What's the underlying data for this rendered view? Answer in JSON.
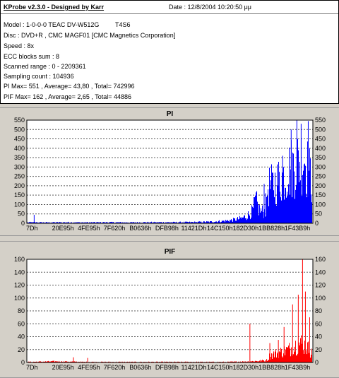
{
  "header": {
    "title": "KProbe v2.3.0 - Designed by Karr",
    "date": "Date : 12/8/2004 10:20:50 μμ",
    "lines": [
      "Model : 1-0-0-0 TEAC    DV-W512G",
      "Disc : DVD+R , CMC MAGF01 [CMC Magnetics Corporation]",
      "Speed : 8x",
      "ECC blocks sum : 8",
      "Scanned range : 0 - 2209361",
      "Sampling count : 104936",
      "PI Max= 551 , Average= 43,80 , Total= 742996",
      "PIF Max= 162 , Average= 2,65 , Total= 44886"
    ],
    "firmware": "T4S6"
  },
  "charts": [
    {
      "chart_data": {
        "type": "area",
        "title": "PI",
        "color": "#0000ff",
        "ylim": [
          0,
          550
        ],
        "yticks": [
          0,
          50,
          100,
          150,
          200,
          250,
          300,
          350,
          400,
          450,
          500,
          550
        ],
        "xticks": [
          "7Dh",
          "20E95h",
          "4FE95h",
          "7F620h",
          "B0636h",
          "DFB98h",
          "11421Dh",
          "14C150h",
          "182D30h",
          "1BB828h",
          "1F43B9h"
        ],
        "xlim": [
          0,
          2209361
        ],
        "max": 551,
        "average": 43.8,
        "profile": [
          [
            0,
            6
          ],
          [
            0.07,
            5
          ],
          [
            0.14,
            6
          ],
          [
            0.21,
            5
          ],
          [
            0.28,
            6
          ],
          [
            0.35,
            5
          ],
          [
            0.42,
            6
          ],
          [
            0.5,
            6
          ],
          [
            0.58,
            7
          ],
          [
            0.64,
            9
          ],
          [
            0.69,
            14
          ],
          [
            0.72,
            20
          ],
          [
            0.75,
            30
          ],
          [
            0.77,
            45
          ],
          [
            0.78,
            60
          ],
          [
            0.79,
            75
          ],
          [
            0.8,
            140
          ],
          [
            0.805,
            120
          ],
          [
            0.81,
            90
          ],
          [
            0.815,
            80
          ],
          [
            0.82,
            75
          ],
          [
            0.83,
            70
          ],
          [
            0.838,
            75
          ],
          [
            0.842,
            220
          ],
          [
            0.86,
            230
          ],
          [
            0.88,
            260
          ],
          [
            0.9,
            290
          ],
          [
            0.92,
            330
          ],
          [
            0.94,
            360
          ],
          [
            0.96,
            390
          ],
          [
            0.97,
            420
          ],
          [
            0.98,
            350
          ],
          [
            0.99,
            300
          ],
          [
            1,
            260
          ]
        ],
        "spikes": [
          [
            0.022,
            45
          ],
          [
            0.83,
            210
          ],
          [
            0.835,
            160
          ],
          [
            0.895,
            360
          ],
          [
            0.925,
            500
          ],
          [
            0.945,
            551
          ],
          [
            0.96,
            530
          ],
          [
            0.985,
            545
          ]
        ]
      }
    },
    {
      "chart_data": {
        "type": "area",
        "title": "PIF",
        "color": "#ff0000",
        "ylim": [
          0,
          160
        ],
        "yticks": [
          0,
          20,
          40,
          60,
          80,
          100,
          120,
          140,
          160
        ],
        "xticks": [
          "7Dh",
          "20E95h",
          "4FE95h",
          "7F620h",
          "B0636h",
          "DFB98h",
          "11421Dh",
          "14C150h",
          "182D30h",
          "1BB828h",
          "1F43B9h"
        ],
        "xlim": [
          0,
          2209361
        ],
        "max": 162,
        "average": 2.65,
        "profile": [
          [
            0,
            1
          ],
          [
            0.1,
            2
          ],
          [
            0.2,
            1
          ],
          [
            0.3,
            1
          ],
          [
            0.4,
            1
          ],
          [
            0.5,
            1
          ],
          [
            0.6,
            1
          ],
          [
            0.7,
            1
          ],
          [
            0.78,
            2
          ],
          [
            0.82,
            3
          ],
          [
            0.84,
            4
          ],
          [
            0.85,
            12
          ],
          [
            0.87,
            16
          ],
          [
            0.9,
            20
          ],
          [
            0.92,
            24
          ],
          [
            0.94,
            30
          ],
          [
            0.96,
            34
          ],
          [
            0.98,
            28
          ],
          [
            1,
            15
          ]
        ],
        "spikes": [
          [
            0.16,
            8
          ],
          [
            0.21,
            7
          ],
          [
            0.78,
            60
          ],
          [
            0.85,
            30
          ],
          [
            0.88,
            35
          ],
          [
            0.9,
            55
          ],
          [
            0.93,
            90
          ],
          [
            0.95,
            105
          ],
          [
            0.965,
            162
          ],
          [
            0.975,
            110
          ],
          [
            0.99,
            70
          ]
        ]
      }
    }
  ]
}
